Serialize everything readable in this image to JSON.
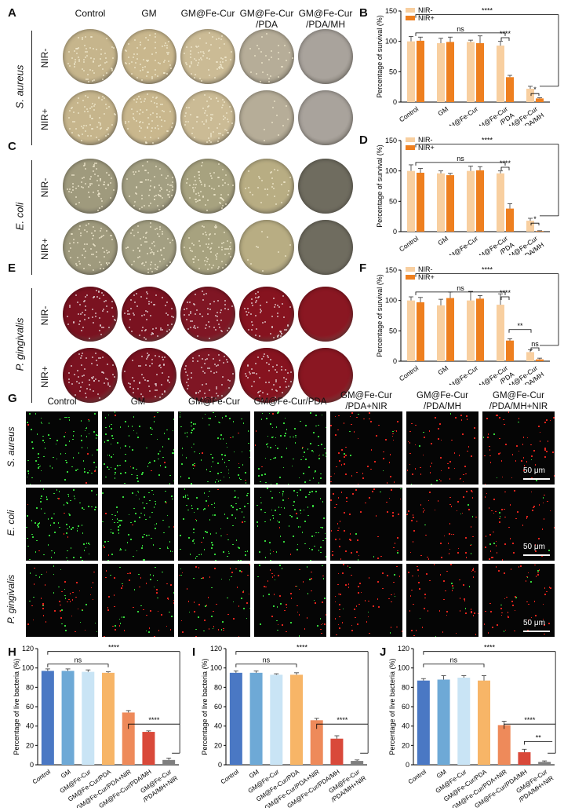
{
  "panels": {
    "A": "A",
    "B": "B",
    "C": "C",
    "D": "D",
    "E": "E",
    "F": "F",
    "G": "G",
    "H": "H",
    "I": "I",
    "J": "J"
  },
  "plate_headers": [
    "Control",
    "GM",
    "GM@Fe-Cur",
    "GM@Fe-Cur\n/PDA",
    "GM@Fe-Cur\n/PDA/MH"
  ],
  "plate_rows": {
    "organisms": [
      "S. aureus",
      "E. coli",
      "P. gingivalis"
    ],
    "conditions": [
      "NIR-",
      "NIR+"
    ]
  },
  "plate_colors": {
    "S. aureus": [
      "#c6b58c",
      "#c9b78d",
      "#cbbb95",
      "#b6ad98",
      "#a9a39c"
    ],
    "E. coli": [
      "#9f9a7d",
      "#a39f82",
      "#a7a27f",
      "#b8ad83",
      "#6f6c5f"
    ],
    "P. gingivalis": [
      "#7a1220",
      "#7a1220",
      "#7f1624",
      "#86131f",
      "#8a1722"
    ]
  },
  "micro_headers": [
    "Control",
    "GM",
    "GM@Fe-Cur",
    "GM@Fe-Cur/PDA",
    "GM@Fe-Cur\n/PDA+NIR",
    "GM@Fe-Cur\n/PDA/MH",
    "GM@Fe-Cur\n/PDA/MH+NIR"
  ],
  "micro_rows": [
    "S. aureus",
    "E. coli",
    "P. gingivalis"
  ],
  "scale_bar": "50 μm",
  "colors": {
    "nir_minus": "#f8cfa0",
    "nir_plus": "#ee7f1f",
    "live_bars": [
      "#4a78c4",
      "#6ea9d6",
      "#c9e4f5",
      "#f7b567",
      "#ee8a5a",
      "#d9493a",
      "#7f7f7f"
    ]
  },
  "chart_data": [
    {
      "type": "bar",
      "panel": "B",
      "categories": [
        "Control",
        "GM",
        "GM@Fe-Cur",
        "GM@Fe-Cur\n/PDA",
        "GM@Fe-Cur\n/PDA/MH"
      ],
      "series": [
        {
          "name": "NIR-",
          "values": [
            100,
            97,
            99,
            93,
            22
          ],
          "errors": [
            8,
            8,
            3,
            7,
            4
          ]
        },
        {
          "name": "NIR+",
          "values": [
            101,
            99,
            97,
            41,
            6
          ],
          "errors": [
            6,
            8,
            12,
            3,
            1
          ]
        }
      ],
      "ylabel": "Percentage of survival (%)",
      "ylim": [
        0,
        150
      ],
      "yticks": [
        0,
        50,
        100,
        150
      ],
      "legend": "top-left",
      "annotations": [
        "ns",
        "****",
        "****",
        "*"
      ]
    },
    {
      "type": "bar",
      "panel": "D",
      "categories": [
        "Control",
        "GM",
        "GM@Fe-Cur",
        "GM@Fe-Cur\n/PDA",
        "GM@Fe-Cur\n/PDA/MH"
      ],
      "series": [
        {
          "name": "NIR-",
          "values": [
            100,
            96,
            100,
            96,
            18
          ],
          "errors": [
            10,
            4,
            8,
            4,
            4
          ]
        },
        {
          "name": "NIR+",
          "values": [
            97,
            93,
            101,
            38,
            1
          ],
          "errors": [
            7,
            3,
            6,
            8,
            0.5
          ]
        }
      ],
      "ylabel": "Percentage of survival (%)",
      "ylim": [
        0,
        150
      ],
      "yticks": [
        0,
        50,
        100,
        150
      ],
      "legend": "top-left",
      "annotations": [
        "ns",
        "****",
        "****",
        "*"
      ]
    },
    {
      "type": "bar",
      "panel": "F",
      "categories": [
        "Control",
        "GM",
        "GM@Fe-Cur",
        "GM@Fe-Cur\n/PDA",
        "GM@Fe-Cur\n/PDA/MH"
      ],
      "series": [
        {
          "name": "NIR-",
          "values": [
            100,
            92,
            100,
            93,
            15
          ],
          "errors": [
            6,
            10,
            15,
            18,
            4
          ]
        },
        {
          "name": "NIR+",
          "values": [
            97,
            104,
            103,
            34,
            3
          ],
          "errors": [
            8,
            10,
            5,
            3,
            2
          ]
        }
      ],
      "ylabel": "Percentage of survival (%)",
      "ylim": [
        0,
        150
      ],
      "yticks": [
        0,
        50,
        100,
        150
      ],
      "legend": "top-left",
      "annotations": [
        "ns",
        "****",
        "****",
        "**",
        "ns"
      ]
    },
    {
      "type": "bar",
      "panel": "H",
      "categories": [
        "Control",
        "GM",
        "GM@Fe-Cur",
        "GM@Fe-Cur/PDA",
        "GM@Fe-Cur/PDA+NIR",
        "GM@Fe-Cur/PDA/MH",
        "GM@Fe-Cur\n/PDA/MH+NIR"
      ],
      "values": [
        97,
        97,
        96,
        95,
        54,
        34,
        5
      ],
      "errors": [
        2,
        2,
        2,
        1,
        2,
        1,
        2
      ],
      "ylabel": "Percentage of live bacteria (%)",
      "ylim": [
        0,
        120
      ],
      "yticks": [
        0,
        20,
        40,
        60,
        80,
        100,
        120
      ],
      "annotations": [
        "ns",
        "****",
        "****"
      ]
    },
    {
      "type": "bar",
      "panel": "I",
      "categories": [
        "Control",
        "GM",
        "GM@Fe-Cur",
        "GM@Fe-Cur/PDA",
        "GM@Fe-Cur/PDA+NIR",
        "GM@Fe-Cur/PDA/MH",
        "GM@Fe-Cur\n/PDA/MH+NIR"
      ],
      "values": [
        95,
        95,
        93,
        93,
        46,
        27,
        4
      ],
      "errors": [
        2,
        2,
        1,
        2,
        2,
        3,
        1
      ],
      "ylabel": "Percentage of live bacteria (%)",
      "ylim": [
        0,
        120
      ],
      "yticks": [
        0,
        20,
        40,
        60,
        80,
        100,
        120
      ],
      "annotations": [
        "ns",
        "****",
        "****"
      ]
    },
    {
      "type": "bar",
      "panel": "J",
      "categories": [
        "Control",
        "GM",
        "GM@Fe-Cur",
        "GM@Fe-Cur/PDA",
        "GM@Fe-Cur/PDA+NIR",
        "GM@Fe-Cur/PDA/MH",
        "GM@Fe-Cur\n/PDA/MH+NIR"
      ],
      "values": [
        87,
        88,
        90,
        87,
        41,
        13,
        3
      ],
      "errors": [
        2,
        4,
        2,
        5,
        4,
        3,
        1
      ],
      "ylabel": "Percentage of live bacteria (%)",
      "ylim": [
        0,
        120
      ],
      "yticks": [
        0,
        20,
        40,
        60,
        80,
        100,
        120
      ],
      "annotations": [
        "ns",
        "****",
        "****",
        "**"
      ]
    }
  ]
}
